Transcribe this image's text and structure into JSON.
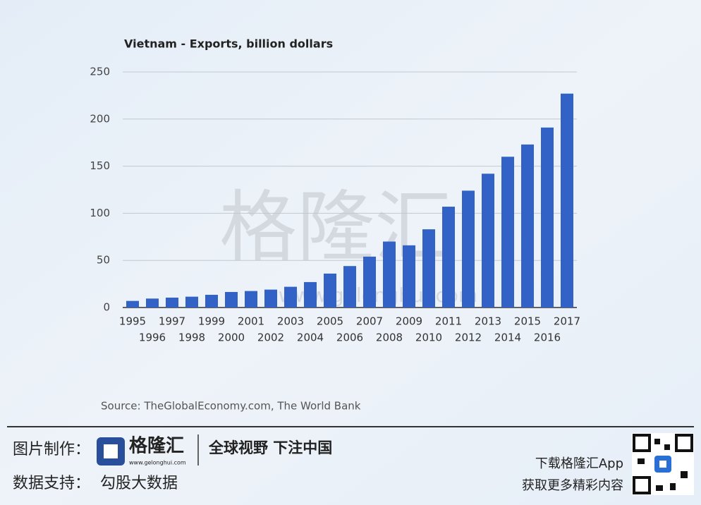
{
  "chart_data": {
    "type": "bar",
    "title": "Vietnam - Exports, billion dollars",
    "categories": [
      "1995",
      "1996",
      "1997",
      "1998",
      "1999",
      "2000",
      "2001",
      "2002",
      "2003",
      "2004",
      "2005",
      "2006",
      "2007",
      "2008",
      "2009",
      "2010",
      "2011",
      "2012",
      "2013",
      "2014",
      "2015",
      "2016",
      "2017"
    ],
    "values": [
      7,
      9.5,
      10.5,
      11.5,
      13.5,
      16.5,
      17.5,
      19,
      22,
      27,
      36,
      44,
      54,
      70,
      66,
      83,
      107,
      124,
      142,
      160,
      173,
      191,
      227
    ],
    "color": "#3262c6",
    "ylim": [
      0,
      250
    ],
    "yticks": [
      0,
      50,
      100,
      150,
      200,
      250
    ],
    "grid": true,
    "source": "Source: TheGlobalEconomy.com, The World Bank"
  },
  "watermark": {
    "brand": "格隆汇",
    "url": "www.gelonghui.com"
  },
  "footer": {
    "made_by_label": "图片制作：",
    "logo_text": "格隆汇",
    "logo_url": "www.gelonghui.com",
    "slogan": "全球视野 下注中国",
    "data_label": "数据支持：",
    "data_provider": "勾股大数据",
    "app_line1": "下载格隆汇App",
    "app_line2": "获取更多精彩内容"
  }
}
